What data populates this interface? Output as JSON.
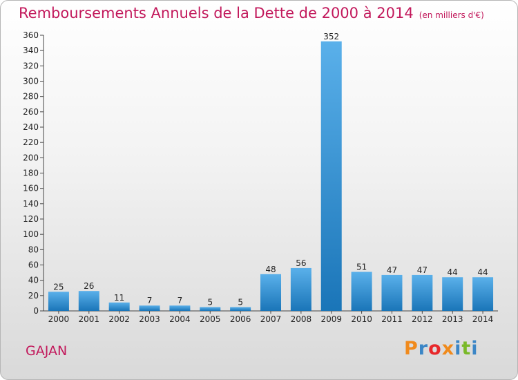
{
  "title": "Remboursements Annuels de la Dette de 2000 à 2014",
  "unit": "(en milliers d'€)",
  "location": "GAJAN",
  "logo": {
    "text": "Proxiti",
    "colors": [
      "#f08a1c",
      "#3b86c6",
      "#e8282b",
      "#f08a1c",
      "#3b86c6",
      "#7ab929",
      "#3b86c6"
    ]
  },
  "colors": {
    "bar_light": "#5ab0ea",
    "bar_dark": "#1a75b8",
    "title": "#c2185b"
  },
  "chart_data": {
    "type": "bar",
    "title": "Remboursements Annuels de la Dette de 2000 à 2014",
    "categories": [
      "2000",
      "2001",
      "2002",
      "2003",
      "2004",
      "2005",
      "2006",
      "2007",
      "2008",
      "2009",
      "2010",
      "2011",
      "2012",
      "2013",
      "2014"
    ],
    "values": [
      25,
      26,
      11,
      7,
      7,
      5,
      5,
      48,
      56,
      352,
      51,
      47,
      47,
      44,
      44
    ],
    "ylim": [
      0,
      360
    ],
    "yticks": [
      0,
      20,
      40,
      60,
      80,
      100,
      120,
      140,
      160,
      180,
      200,
      220,
      240,
      260,
      280,
      300,
      320,
      340,
      360
    ],
    "grid": false,
    "legend": "none"
  }
}
